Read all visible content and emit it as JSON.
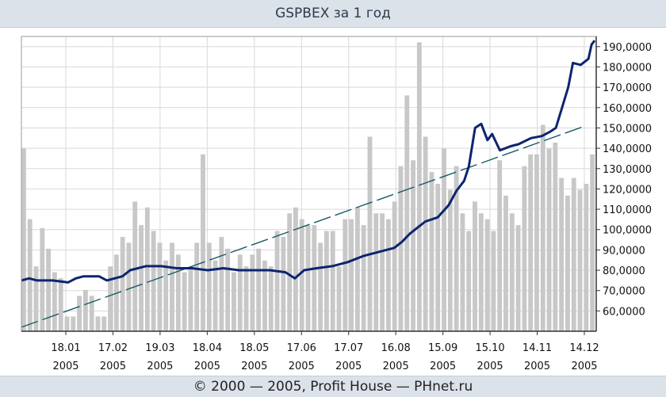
{
  "title": "GSPBEX за 1 год",
  "footer": "© 2000 — 2005, Profit House — PHnet.ru",
  "colors": {
    "price_line": "#0d2470",
    "trend_line": "#1a5a66",
    "volume_bars": "#c8c8c8",
    "grid": "#d9d9d9",
    "header_bg": "#dbe2ea"
  },
  "chart_data": {
    "type": "line",
    "title": "GSPBEX за 1 год",
    "xlabel": "",
    "ylabel": "",
    "ylim": [
      50,
      195
    ],
    "y_ticks": [
      "60,0000",
      "70,0000",
      "80,0000",
      "90,0000",
      "100,0000",
      "110,0000",
      "120,0000",
      "130,0000",
      "140,0000",
      "150,0000",
      "160,0000",
      "170,0000",
      "180,0000",
      "190,0000"
    ],
    "x_ticks": [
      {
        "day": "18.01",
        "year": "2005"
      },
      {
        "day": "17.02",
        "year": "2005"
      },
      {
        "day": "19.03",
        "year": "2005"
      },
      {
        "day": "18.04",
        "year": "2005"
      },
      {
        "day": "18.05",
        "year": "2005"
      },
      {
        "day": "17.06",
        "year": "2005"
      },
      {
        "day": "17.07",
        "year": "2005"
      },
      {
        "day": "16.08",
        "year": "2005"
      },
      {
        "day": "15.09",
        "year": "2005"
      },
      {
        "day": "15.10",
        "year": "2005"
      },
      {
        "day": "14.11",
        "year": "2005"
      },
      {
        "day": "14.12",
        "year": "2005"
      }
    ],
    "series": [
      {
        "name": "GSPBEX",
        "style": "solid",
        "points": [
          [
            0,
            75
          ],
          [
            5,
            76
          ],
          [
            10,
            75
          ],
          [
            20,
            75
          ],
          [
            30,
            74
          ],
          [
            35,
            76
          ],
          [
            40,
            77
          ],
          [
            50,
            77
          ],
          [
            55,
            75
          ],
          [
            65,
            77
          ],
          [
            70,
            80
          ],
          [
            80,
            82
          ],
          [
            90,
            82
          ],
          [
            100,
            81
          ],
          [
            110,
            81
          ],
          [
            120,
            80
          ],
          [
            130,
            81
          ],
          [
            140,
            80
          ],
          [
            150,
            80
          ],
          [
            160,
            80
          ],
          [
            170,
            79
          ],
          [
            176,
            76
          ],
          [
            182,
            80
          ],
          [
            190,
            81
          ],
          [
            200,
            82
          ],
          [
            210,
            84
          ],
          [
            220,
            87
          ],
          [
            230,
            89
          ],
          [
            240,
            91
          ],
          [
            245,
            94
          ],
          [
            250,
            98
          ],
          [
            255,
            101
          ],
          [
            260,
            104
          ],
          [
            268,
            106
          ],
          [
            275,
            112
          ],
          [
            280,
            119
          ],
          [
            285,
            124
          ],
          [
            288,
            131
          ],
          [
            292,
            150
          ],
          [
            296,
            152
          ],
          [
            300,
            144
          ],
          [
            303,
            147
          ],
          [
            308,
            139
          ],
          [
            315,
            141
          ],
          [
            320,
            142
          ],
          [
            328,
            145
          ],
          [
            335,
            146
          ],
          [
            340,
            148
          ],
          [
            344,
            150
          ],
          [
            348,
            160
          ],
          [
            352,
            170
          ],
          [
            355,
            182
          ],
          [
            360,
            181
          ],
          [
            365,
            184
          ],
          [
            367,
            191
          ],
          [
            369,
            193
          ]
        ]
      },
      {
        "name": "Trend",
        "style": "dashed",
        "points": [
          [
            0,
            52
          ],
          [
            363,
            151
          ]
        ]
      }
    ],
    "volume": {
      "name": "Volume",
      "values": [
        0.62,
        0.38,
        0.22,
        0.35,
        0.28,
        0.2,
        0.18,
        0.05,
        0.05,
        0.12,
        0.14,
        0.12,
        0.05,
        0.05,
        0.22,
        0.26,
        0.32,
        0.3,
        0.44,
        0.36,
        0.42,
        0.34,
        0.3,
        0.24,
        0.3,
        0.26,
        0.2,
        0.22,
        0.3,
        0.6,
        0.3,
        0.24,
        0.32,
        0.28,
        0.2,
        0.26,
        0.22,
        0.26,
        0.28,
        0.24,
        0.22,
        0.34,
        0.32,
        0.4,
        0.42,
        0.38,
        0.36,
        0.36,
        0.3,
        0.34,
        0.34,
        0.22,
        0.38,
        0.38,
        0.42,
        0.36,
        0.66,
        0.4,
        0.4,
        0.38,
        0.44,
        0.56,
        0.8,
        0.58,
        0.98,
        0.66,
        0.54,
        0.5,
        0.62,
        0.48,
        0.56,
        0.4,
        0.34,
        0.44,
        0.4,
        0.38,
        0.34,
        0.58,
        0.46,
        0.4,
        0.36,
        0.56,
        0.6,
        0.6,
        0.7,
        0.62,
        0.64,
        0.52,
        0.46,
        0.52,
        0.48,
        0.5,
        0.6
      ]
    }
  }
}
